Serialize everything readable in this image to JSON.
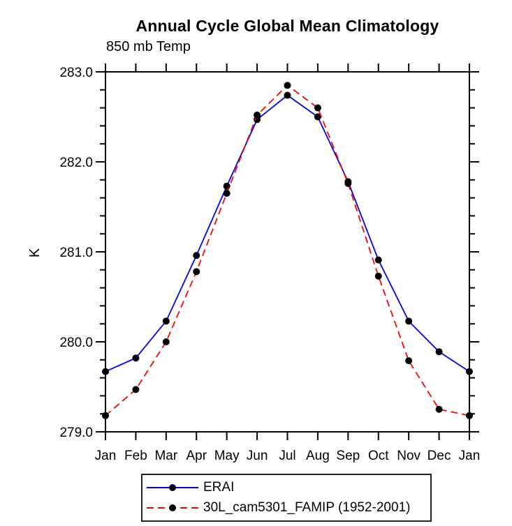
{
  "title": "Annual Cycle Global Mean Climatology",
  "subtitle": "850 mb Temp",
  "ylabel": "K",
  "colors": {
    "erai_line": "#0000ee",
    "famip_line": "#f80500",
    "marker": "#000000",
    "axis": "#000000"
  },
  "legend": {
    "items": [
      {
        "label": "ERAI",
        "color": "#0000ee",
        "style": "solid"
      },
      {
        "label": "30L_cam5301_FAMIP (1952-2001)",
        "color": "#f80500",
        "style": "dashed"
      }
    ]
  },
  "chart_data": {
    "type": "line",
    "title": "Annual Cycle Global Mean Climatology",
    "subtitle": "850 mb Temp",
    "xlabel": "",
    "ylabel": "K",
    "x_categories": [
      "Jan",
      "Feb",
      "Mar",
      "Apr",
      "May",
      "Jun",
      "Jul",
      "Aug",
      "Sep",
      "Oct",
      "Nov",
      "Dec",
      "Jan"
    ],
    "ylim": [
      279.0,
      283.0
    ],
    "ytick_labels": [
      "283.0",
      "282.0",
      "281.0",
      "280.0",
      "279.0"
    ],
    "ytick_values": [
      283.0,
      282.0,
      281.0,
      280.0,
      279.0
    ],
    "y_minor_interval": 0.2,
    "grid": false,
    "legend_position": "bottom",
    "marker": "black-filled-circle",
    "series": [
      {
        "name": "ERAI",
        "color": "#0000ee",
        "line_style": "solid",
        "values": [
          279.67,
          279.82,
          280.23,
          280.96,
          281.73,
          282.47,
          282.74,
          282.5,
          281.78,
          280.91,
          280.23,
          279.89,
          279.67
        ]
      },
      {
        "name": "30L_cam5301_FAMIP (1952-2001)",
        "color": "#f80500",
        "line_style": "dashed",
        "values": [
          279.18,
          279.47,
          280.0,
          280.78,
          281.65,
          282.52,
          282.85,
          282.6,
          281.76,
          280.73,
          279.79,
          279.25,
          279.18
        ]
      }
    ]
  }
}
